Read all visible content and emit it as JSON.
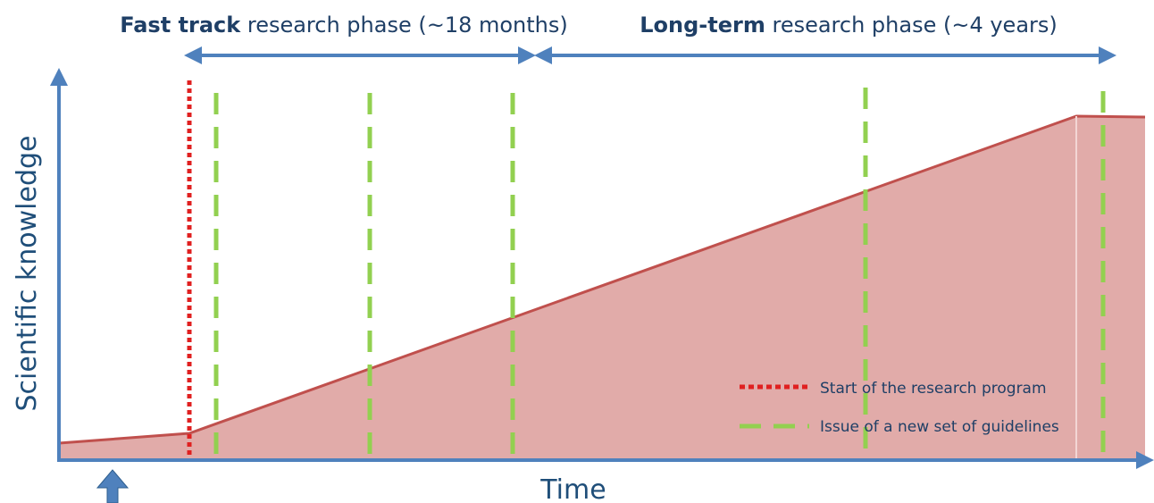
{
  "phases": {
    "fast_track": {
      "bold": "Fast track",
      "rest": " research phase (~18 months)"
    },
    "long_term": {
      "bold": "Long-term",
      "rest": " research phase (~4 years)"
    }
  },
  "axes": {
    "x_label": "Time",
    "y_label": "Scientific knowledge"
  },
  "legend": {
    "start": "Start of the research program",
    "guidelines": "Issue of a new set of guidelines"
  },
  "colors": {
    "axis": "#4f81bd",
    "arrow": "#4f81bd",
    "area_fill": "#d99694",
    "area_line": "#c0504d",
    "start_line": "#e02020",
    "guideline": "#92d050"
  },
  "icons": {
    "now_marker": "up-arrow-icon"
  }
}
